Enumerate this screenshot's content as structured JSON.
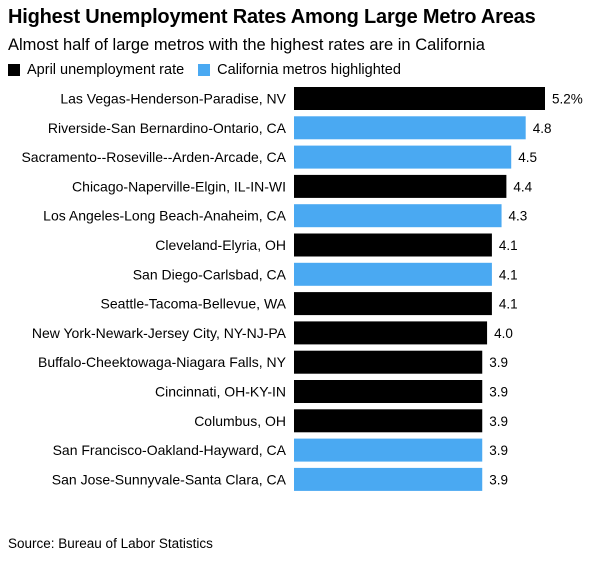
{
  "title": "Highest Unemployment Rates Among Large Metro Areas",
  "subtitle": "Almost half of large metros with the highest rates are in California",
  "legend": [
    {
      "label": "April unemployment rate",
      "color": "#000000"
    },
    {
      "label": "California metros highlighted",
      "color": "#4aa9f2"
    }
  ],
  "source": "Source: Bureau of Labor Statistics",
  "chart_data": {
    "type": "bar",
    "orientation": "horizontal",
    "title": "Highest Unemployment Rates Among Large Metro Areas",
    "xlim": [
      0,
      5.2
    ],
    "categories": [
      "Las Vegas-Henderson-Paradise, NV",
      "Riverside-San Bernardino-Ontario, CA",
      "Sacramento--Roseville--Arden-Arcade, CA",
      "Chicago-Naperville-Elgin, IL-IN-WI",
      "Los Angeles-Long Beach-Anaheim, CA",
      "Cleveland-Elyria, OH",
      "San Diego-Carlsbad, CA",
      "Seattle-Tacoma-Bellevue, WA",
      "New York-Newark-Jersey City, NY-NJ-PA",
      "Buffalo-Cheektowaga-Niagara Falls, NY",
      "Cincinnati, OH-KY-IN",
      "Columbus, OH",
      "San Francisco-Oakland-Hayward, CA",
      "San Jose-Sunnyvale-Santa Clara, CA"
    ],
    "values": [
      5.2,
      4.8,
      4.5,
      4.4,
      4.3,
      4.1,
      4.1,
      4.1,
      4.0,
      3.9,
      3.9,
      3.9,
      3.9,
      3.9
    ],
    "value_labels": [
      "5.2%",
      "4.8",
      "4.5",
      "4.4",
      "4.3",
      "4.1",
      "4.1",
      "4.1",
      "4.0",
      "3.9",
      "3.9",
      "3.9",
      "3.9",
      "3.9"
    ],
    "california": [
      false,
      true,
      true,
      false,
      true,
      false,
      true,
      false,
      false,
      false,
      false,
      false,
      true,
      true
    ],
    "colors": {
      "default": "#000000",
      "california": "#4aa9f2"
    }
  }
}
